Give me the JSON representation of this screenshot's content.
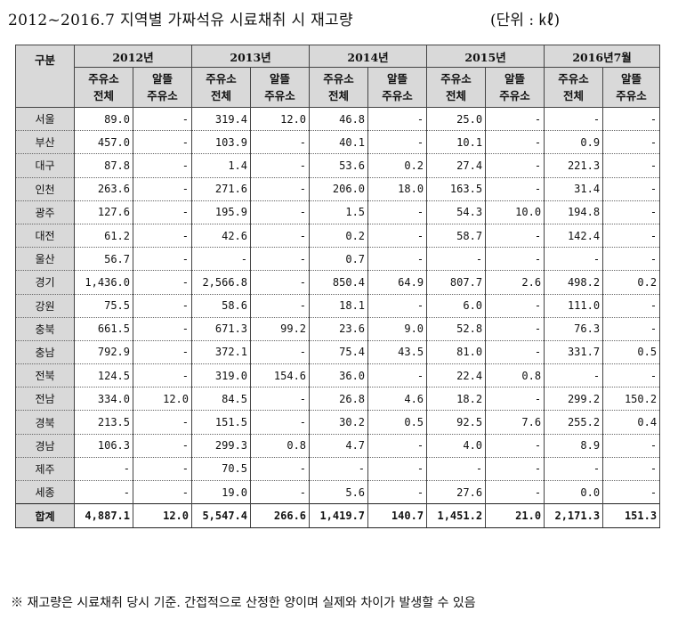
{
  "title": "2012~2016.7 지역별 가짜석유 시료채취 시 재고량",
  "unit": "(단위 : ㎘)",
  "table": {
    "corner_header": "구분",
    "years": [
      "2012년",
      "2013년",
      "2014년",
      "2015년",
      "2016년7월"
    ],
    "sub_headers": [
      [
        "주유소",
        "전체"
      ],
      [
        "알뜰",
        "주유소"
      ],
      [
        "주유소",
        "전체"
      ],
      [
        "알뜰",
        "주유소"
      ],
      [
        "주유소",
        "전체"
      ],
      [
        "알뜰",
        "주유소"
      ],
      [
        "주유소",
        "전체"
      ],
      [
        "알뜰",
        "주유소"
      ],
      [
        "주유소",
        "전체"
      ],
      [
        "알뜰",
        "주유소"
      ]
    ],
    "rows": [
      {
        "region": "서울",
        "values": [
          "89.0",
          "-",
          "319.4",
          "12.0",
          "46.8",
          "-",
          "25.0",
          "-",
          "-",
          "-"
        ]
      },
      {
        "region": "부산",
        "values": [
          "457.0",
          "-",
          "103.9",
          "-",
          "40.1",
          "-",
          "10.1",
          "-",
          "0.9",
          "-"
        ]
      },
      {
        "region": "대구",
        "values": [
          "87.8",
          "-",
          "1.4",
          "-",
          "53.6",
          "0.2",
          "27.4",
          "-",
          "221.3",
          "-"
        ]
      },
      {
        "region": "인천",
        "values": [
          "263.6",
          "-",
          "271.6",
          "-",
          "206.0",
          "18.0",
          "163.5",
          "-",
          "31.4",
          "-"
        ]
      },
      {
        "region": "광주",
        "values": [
          "127.6",
          "-",
          "195.9",
          "-",
          "1.5",
          "-",
          "54.3",
          "10.0",
          "194.8",
          "-"
        ]
      },
      {
        "region": "대전",
        "values": [
          "61.2",
          "-",
          "42.6",
          "-",
          "0.2",
          "-",
          "58.7",
          "-",
          "142.4",
          "-"
        ]
      },
      {
        "region": "울산",
        "values": [
          "56.7",
          "-",
          "-",
          "-",
          "0.7",
          "-",
          "-",
          "-",
          "-",
          "-"
        ]
      },
      {
        "region": "경기",
        "values": [
          "1,436.0",
          "-",
          "2,566.8",
          "-",
          "850.4",
          "64.9",
          "807.7",
          "2.6",
          "498.2",
          "0.2"
        ]
      },
      {
        "region": "강원",
        "values": [
          "75.5",
          "-",
          "58.6",
          "-",
          "18.1",
          "-",
          "6.0",
          "-",
          "111.0",
          "-"
        ]
      },
      {
        "region": "충북",
        "values": [
          "661.5",
          "-",
          "671.3",
          "99.2",
          "23.6",
          "9.0",
          "52.8",
          "-",
          "76.3",
          "-"
        ]
      },
      {
        "region": "충남",
        "values": [
          "792.9",
          "-",
          "372.1",
          "-",
          "75.4",
          "43.5",
          "81.0",
          "-",
          "331.7",
          "0.5"
        ]
      },
      {
        "region": "전북",
        "values": [
          "124.5",
          "-",
          "319.0",
          "154.6",
          "36.0",
          "-",
          "22.4",
          "0.8",
          "-",
          "-"
        ]
      },
      {
        "region": "전남",
        "values": [
          "334.0",
          "12.0",
          "84.5",
          "-",
          "26.8",
          "4.6",
          "18.2",
          "-",
          "299.2",
          "150.2"
        ]
      },
      {
        "region": "경북",
        "values": [
          "213.5",
          "-",
          "151.5",
          "-",
          "30.2",
          "0.5",
          "92.5",
          "7.6",
          "255.2",
          "0.4"
        ]
      },
      {
        "region": "경남",
        "values": [
          "106.3",
          "-",
          "299.3",
          "0.8",
          "4.7",
          "-",
          "4.0",
          "-",
          "8.9",
          "-"
        ]
      },
      {
        "region": "제주",
        "values": [
          "-",
          "-",
          "70.5",
          "-",
          "-",
          "-",
          "-",
          "-",
          "-",
          "-"
        ]
      },
      {
        "region": "세종",
        "values": [
          "-",
          "-",
          "19.0",
          "-",
          "5.6",
          "-",
          "27.6",
          "-",
          "0.0",
          "-"
        ]
      }
    ],
    "total": {
      "region": "합계",
      "values": [
        "4,887.1",
        "12.0",
        "5,547.4",
        "266.6",
        "1,419.7",
        "140.7",
        "1,451.2",
        "21.0",
        "2,171.3",
        "151.3"
      ]
    }
  },
  "note": "※ 재고량은 시료채취 당시 기준. 간접적으로 산정한 양이며 실제와 차이가 발생할 수 있음"
}
